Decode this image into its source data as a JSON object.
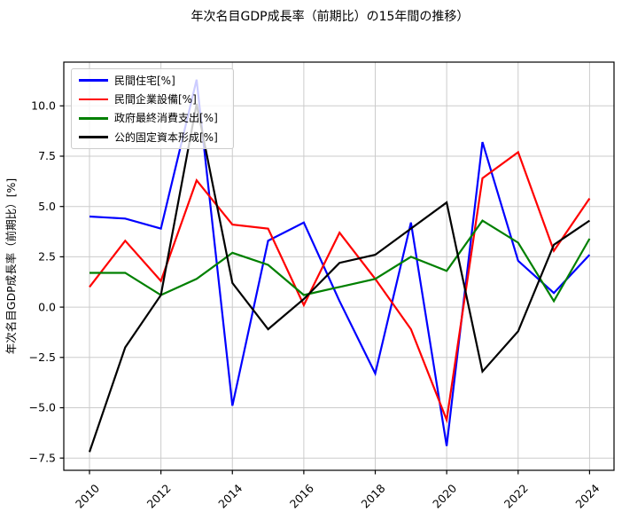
{
  "chart_data": {
    "type": "line",
    "title": "年次名目GDP成長率（前期比）の15年間の推移）",
    "ylabel": "年次名目GDP成長率（前期比）[%]",
    "x": [
      2010,
      2011,
      2012,
      2013,
      2014,
      2015,
      2016,
      2017,
      2018,
      2019,
      2020,
      2021,
      2022,
      2023,
      2024
    ],
    "xticks": [
      2010,
      2012,
      2014,
      2016,
      2018,
      2020,
      2022,
      2024
    ],
    "yticks": [
      10.0,
      7.5,
      5.0,
      2.5,
      0.0,
      -2.5,
      -5.0,
      -7.5
    ],
    "ytick_labels": [
      "10.0",
      "7.5",
      "5.0",
      "2.5",
      "0.0",
      "−2.5",
      "−5.0",
      "−7.5"
    ],
    "xlim": [
      2009.3,
      2024.7
    ],
    "ylim": [
      -8.1,
      12.2
    ],
    "grid": true,
    "grid_color": "#cbcbcb",
    "legend_position": "upper left",
    "series": [
      {
        "id": "private-housing",
        "name": "民間住宅[%]",
        "color": "#0000ff",
        "values": [
          4.5,
          4.4,
          3.9,
          11.3,
          -4.9,
          3.3,
          4.2,
          0.3,
          -3.3,
          4.2,
          -6.9,
          8.2,
          2.3,
          0.7,
          2.6
        ]
      },
      {
        "id": "private-capex",
        "name": "民間企業設備[%]",
        "color": "#ff0000",
        "values": [
          1.0,
          3.3,
          1.3,
          6.3,
          4.1,
          3.9,
          0.1,
          3.7,
          1.4,
          -1.1,
          -5.6,
          6.4,
          7.7,
          2.8,
          5.4
        ]
      },
      {
        "id": "govt-consumption",
        "name": "政府最終消費支出[%]",
        "color": "#008000",
        "values": [
          1.7,
          1.7,
          0.6,
          1.4,
          2.7,
          2.1,
          0.6,
          1.0,
          1.4,
          2.5,
          1.8,
          4.3,
          3.2,
          0.3,
          3.4
        ]
      },
      {
        "id": "public-investment",
        "name": "公的固定資本形成[%]",
        "color": "#000000",
        "values": [
          -7.2,
          -2.0,
          0.6,
          10.1,
          1.2,
          -1.1,
          0.4,
          2.2,
          2.6,
          3.9,
          5.2,
          -3.2,
          -1.2,
          3.1,
          4.3
        ]
      }
    ]
  }
}
